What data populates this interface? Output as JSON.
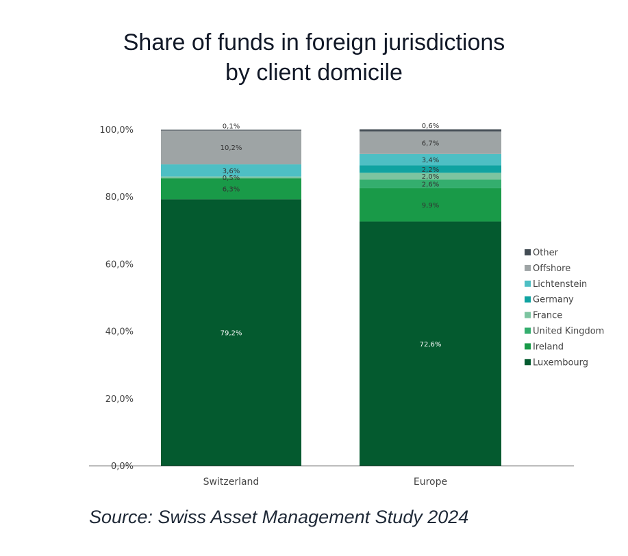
{
  "chart_data": {
    "type": "bar",
    "stacked": true,
    "title_lines": [
      "Share of funds in foreign jurisdictions",
      "by client domicile"
    ],
    "categories": [
      "Switzerland",
      "Europe"
    ],
    "ylim": [
      0,
      100
    ],
    "yticks": [
      "0,0%",
      "20,0%",
      "40,0%",
      "60,0%",
      "80,0%",
      "100,0%"
    ],
    "legend_position": "right",
    "series": [
      {
        "name": "Luxembourg",
        "color": "#045a2f",
        "values": [
          79.2,
          72.6
        ],
        "labels": [
          "79,2%",
          "72,6%"
        ],
        "label_color": "#ffffff"
      },
      {
        "name": "Ireland",
        "color": "#199a48",
        "values": [
          6.3,
          9.9
        ],
        "labels": [
          "6,3%",
          "9,9%"
        ],
        "label_color": "#333333"
      },
      {
        "name": "United Kingdom",
        "color": "#34ae6e",
        "values": [
          0,
          2.6
        ],
        "labels": [
          "",
          "2,6%"
        ],
        "label_color": "#333333"
      },
      {
        "name": "France",
        "color": "#7cc4a0",
        "values": [
          0.5,
          2.0
        ],
        "labels": [
          "0,5%",
          "2,0%"
        ],
        "label_color": "#333333"
      },
      {
        "name": "Germany",
        "color": "#10a3a1",
        "values": [
          0,
          2.2
        ],
        "labels": [
          "",
          "2,2%"
        ],
        "label_color": "#333333"
      },
      {
        "name": "Lichtenstein",
        "color": "#4ebfc4",
        "values": [
          3.6,
          3.4
        ],
        "labels": [
          "3,6%",
          "3,4%"
        ],
        "label_color": "#333333"
      },
      {
        "name": "Offshore",
        "color": "#9ea4a5",
        "values": [
          10.2,
          6.7
        ],
        "labels": [
          "10,2%",
          "6,7%"
        ],
        "label_color": "#333333"
      },
      {
        "name": "Other",
        "color": "#434c54",
        "values": [
          0.1,
          0.6
        ],
        "labels": [
          "0,1%",
          "0,6%"
        ],
        "label_color": "#333333"
      }
    ]
  },
  "source": "Source: Swiss Asset Management Study 2024"
}
